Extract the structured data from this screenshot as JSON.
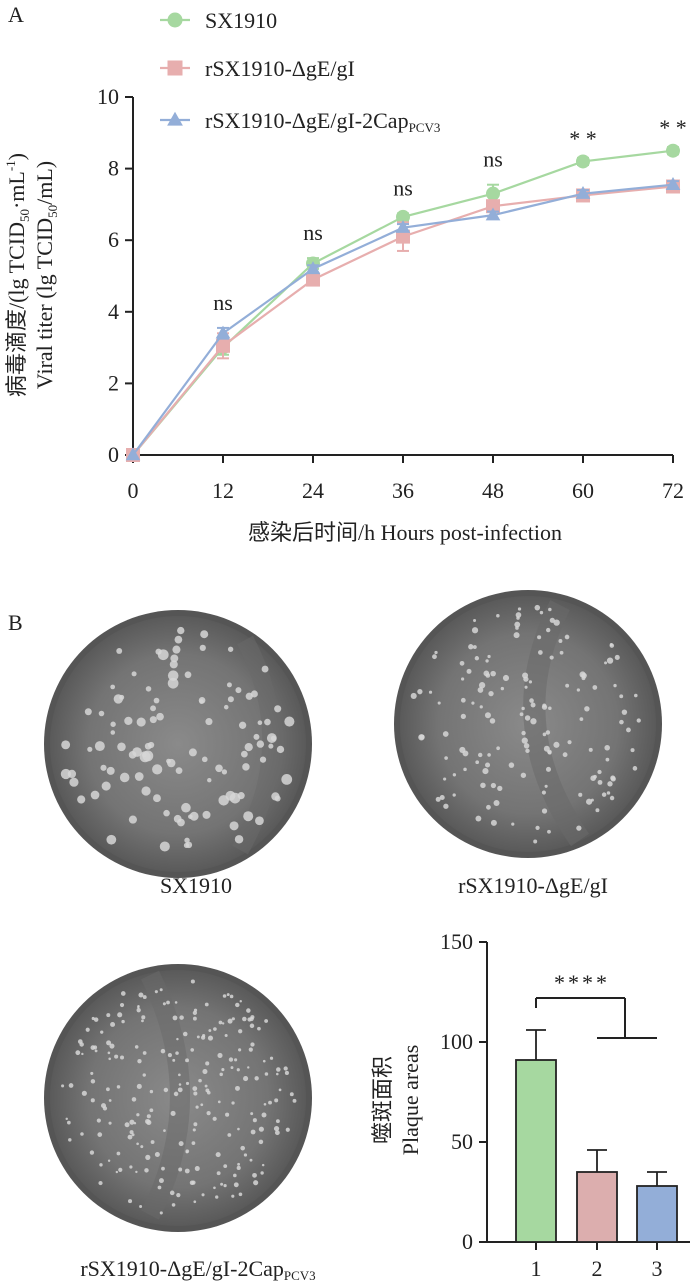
{
  "panel_a": {
    "letter": "A",
    "ylabel_zh": "病毒滴度/(lg TCID",
    "ylabel_zh_sub": "50",
    "ylabel_zh_tail": "·mL",
    "ylabel_zh_sup": "-1",
    "ylabel_zh_close": ")",
    "ylabel_en": "Viral titer (lg TCID",
    "ylabel_en_sub": "50",
    "ylabel_en_tail": "/mL)",
    "xlabel": "感染后时间/h Hours post-infection"
  },
  "panel_b": {
    "letter": "B",
    "plate_labels": {
      "p1": "SX1910",
      "p2": "rSX1910-ΔgE/gI",
      "p3_main": "rSX1910-ΔgE/gI-2Cap",
      "p3_sub": "PCV3"
    },
    "bar_ylabel_zh": "噬斑面积",
    "bar_ylabel_en": "Plaque areas"
  },
  "chart_data": [
    {
      "type": "line",
      "x": [
        0,
        12,
        24,
        36,
        48,
        60,
        72
      ],
      "xticks": [
        "0",
        "12",
        "24",
        "36",
        "48",
        "60",
        "72"
      ],
      "yticks": [
        "0",
        "2",
        "4",
        "6",
        "8",
        "10"
      ],
      "ylim": [
        0,
        10
      ],
      "xlim": [
        0,
        72
      ],
      "legend_position": "top-left",
      "series": [
        {
          "name": "SX1910",
          "color": "#a6d8a0",
          "marker": "circle",
          "values": [
            0,
            3.0,
            5.35,
            6.65,
            7.3,
            8.2,
            8.5
          ],
          "errors": [
            0,
            0.2,
            0.15,
            0.1,
            0.25,
            0.1,
            0.1
          ]
        },
        {
          "name": "rSX1910-ΔgE/gI",
          "color": "#e7aeae",
          "marker": "square",
          "values": [
            0,
            3.05,
            4.9,
            6.1,
            6.95,
            7.25,
            7.5
          ],
          "errors": [
            0,
            0.35,
            0.1,
            0.4,
            0.15,
            0.15,
            0.15
          ]
        },
        {
          "name_main": "rSX1910-ΔgE/gI-2Cap",
          "name_sub": "PCV3",
          "color": "#93aed8",
          "marker": "triangle",
          "values": [
            0,
            3.4,
            5.2,
            6.35,
            6.7,
            7.3,
            7.55
          ],
          "errors": [
            0,
            0.15,
            0.1,
            0.1,
            0.1,
            0.1,
            0.1
          ]
        }
      ],
      "annotations": [
        {
          "x": 12,
          "text": "ns"
        },
        {
          "x": 24,
          "text": "ns"
        },
        {
          "x": 36,
          "text": "ns"
        },
        {
          "x": 48,
          "text": "ns"
        },
        {
          "x": 60,
          "text": "* *"
        },
        {
          "x": 72,
          "text": "* *"
        }
      ]
    },
    {
      "type": "bar",
      "categories": [
        "1",
        "2",
        "3"
      ],
      "values": [
        91,
        35,
        28
      ],
      "errors": [
        15,
        11,
        7
      ],
      "colors": [
        "#a6d8a0",
        "#dcaeae",
        "#93aed8"
      ],
      "ylim": [
        0,
        150
      ],
      "yticks": [
        "0",
        "50",
        "100",
        "150"
      ],
      "significance": "****"
    }
  ]
}
